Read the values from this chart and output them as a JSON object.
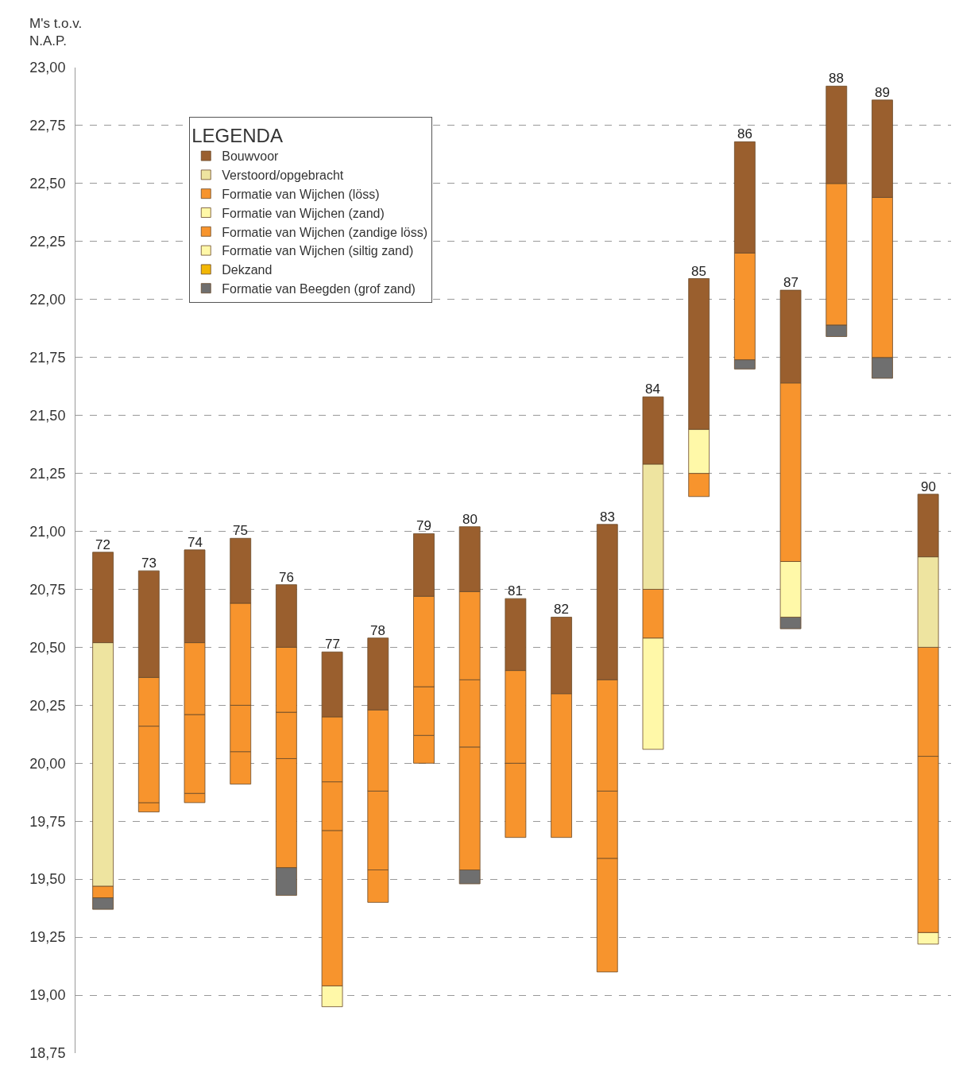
{
  "chart_data": {
    "type": "bar",
    "ylabel": "M's t.o.v.\nN.A.P.",
    "legend_title": "LEGENDA",
    "categories": [
      "72",
      "73",
      "74",
      "75",
      "76",
      "77",
      "78",
      "79",
      "80",
      "81",
      "82",
      "83",
      "84",
      "85",
      "86",
      "87",
      "88",
      "89",
      "90"
    ],
    "series": [
      {
        "name": "Formatie van Beegden (grof zand)",
        "color": "#6f6f6f",
        "base": [
          19.37,
          null,
          null,
          null,
          19.43,
          null,
          null,
          null,
          19.48,
          null,
          null,
          null,
          null,
          null,
          21.7,
          20.58,
          21.84,
          21.66,
          null
        ],
        "values": [
          0.05,
          null,
          null,
          null,
          0.12,
          null,
          null,
          null,
          0.06,
          null,
          null,
          null,
          null,
          null,
          0.04,
          0.05,
          0.05,
          0.09,
          null
        ]
      },
      {
        "color": "#f7942d",
        "base": [
          null,
          null,
          null,
          null,
          null,
          null,
          null,
          null,
          null,
          null,
          null,
          null,
          null,
          21.15,
          null,
          null,
          null,
          null,
          null
        ],
        "values": [
          null,
          null,
          null,
          null,
          null,
          null,
          null,
          null,
          null,
          null,
          null,
          null,
          null,
          0.1,
          null,
          null,
          null,
          null,
          null
        ]
      },
      {
        "name": "Dekzand",
        "color": "#f2b705",
        "values": [
          null,
          null,
          null,
          null,
          null,
          null,
          null,
          null,
          null,
          null,
          null,
          null,
          null,
          null,
          null,
          null,
          null,
          null,
          null
        ]
      },
      {
        "name": "Formatie van Wijchen (siltig zand)",
        "color": "#fff8a8",
        "base": [
          null,
          null,
          null,
          null,
          null,
          18.95,
          null,
          null,
          null,
          null,
          null,
          null,
          20.06,
          21.25,
          null,
          20.63,
          null,
          null,
          19.22
        ],
        "values": [
          null,
          null,
          null,
          null,
          null,
          0.09,
          null,
          null,
          null,
          null,
          null,
          null,
          0.48,
          0.19,
          null,
          0.24,
          null,
          null,
          0.05
        ]
      },
      {
        "name": "Formatie van Wijchen (zandige löss)",
        "color": "#f7942d",
        "base": [
          19.42,
          19.79,
          19.83,
          19.91,
          19.55,
          19.04,
          19.4,
          20.0,
          19.54,
          19.68,
          19.68,
          19.1,
          20.54,
          null,
          21.74,
          20.87,
          21.89,
          21.75,
          19.27
        ],
        "values": [
          0.05,
          0.04,
          0.04,
          0.14,
          0.47,
          0.67,
          0.14,
          0.12,
          0.53,
          0.32,
          0.62,
          0.49,
          0.21,
          null,
          0.46,
          0.77,
          0.61,
          0.69,
          0.76
        ]
      },
      {
        "color": "#f7942d",
        "base": [
          null,
          19.83,
          19.87,
          20.05,
          20.02,
          19.71,
          19.54,
          20.12,
          20.07,
          null,
          null,
          19.59,
          null,
          null,
          null,
          null,
          null,
          null,
          null
        ],
        "values": [
          null,
          0.33,
          0.34,
          0.2,
          0.2,
          0.21,
          0.34,
          0.21,
          0.29,
          null,
          null,
          0.29,
          null,
          null,
          null,
          null,
          null,
          null,
          null
        ]
      },
      {
        "name": "Formatie van Wijchen (zand)",
        "color": "#fff8a8",
        "values": [
          null,
          null,
          null,
          null,
          null,
          null,
          null,
          null,
          null,
          null,
          null,
          null,
          null,
          null,
          null,
          null,
          null,
          null,
          null
        ]
      },
      {
        "name": "Formatie van Wijchen (löss)",
        "color": "#f7942d",
        "base": [
          null,
          20.16,
          20.21,
          20.25,
          20.22,
          19.92,
          19.88,
          20.33,
          20.36,
          20.0,
          null,
          19.88,
          null,
          null,
          null,
          null,
          null,
          null,
          20.03
        ],
        "values": [
          null,
          0.21,
          0.31,
          0.44,
          0.28,
          0.28,
          0.35,
          0.39,
          0.38,
          0.4,
          null,
          0.48,
          null,
          null,
          null,
          null,
          null,
          null,
          0.47
        ]
      },
      {
        "name": "Verstoord/opgebracht",
        "color": "#eee4a0",
        "base": [
          19.47,
          null,
          null,
          null,
          null,
          null,
          null,
          null,
          null,
          null,
          null,
          null,
          20.75,
          null,
          null,
          null,
          null,
          null,
          20.5
        ],
        "values": [
          1.05,
          null,
          null,
          null,
          null,
          null,
          null,
          null,
          null,
          null,
          null,
          null,
          0.54,
          null,
          null,
          null,
          null,
          null,
          0.39
        ]
      },
      {
        "name": "Bouwvoor",
        "color": "#9a5f2e",
        "base": [
          20.52,
          20.37,
          20.52,
          20.69,
          20.5,
          20.2,
          20.23,
          20.72,
          20.74,
          20.4,
          20.3,
          20.36,
          21.29,
          21.44,
          22.2,
          21.64,
          22.5,
          22.44,
          20.89
        ],
        "values": [
          0.39,
          0.46,
          0.4,
          0.28,
          0.27,
          0.28,
          0.31,
          0.27,
          0.28,
          0.31,
          0.33,
          0.67,
          0.29,
          0.65,
          0.48,
          0.4,
          0.42,
          0.42,
          0.27
        ]
      }
    ],
    "ylim": [
      18.75,
      23.0
    ],
    "yticks": [
      {
        "value": 18.75,
        "label": "18,75"
      },
      {
        "value": 19.0,
        "label": "19,00"
      },
      {
        "value": 19.25,
        "label": "19,25"
      },
      {
        "value": 19.5,
        "label": "19,50"
      },
      {
        "value": 19.75,
        "label": "19,75"
      },
      {
        "value": 20.0,
        "label": "20,00"
      },
      {
        "value": 20.25,
        "label": "20,25"
      },
      {
        "value": 20.5,
        "label": "20,50"
      },
      {
        "value": 20.75,
        "label": "20,75"
      },
      {
        "value": 21.0,
        "label": "21,00"
      },
      {
        "value": 21.25,
        "label": "21,25"
      },
      {
        "value": 21.5,
        "label": "21,50"
      },
      {
        "value": 21.75,
        "label": "21,75"
      },
      {
        "value": 22.0,
        "label": "22,00"
      },
      {
        "value": 22.25,
        "label": "22,25"
      },
      {
        "value": 22.5,
        "label": "22,50"
      },
      {
        "value": 22.75,
        "label": "22,75"
      },
      {
        "value": 23.0,
        "label": "23,00"
      }
    ],
    "grid": "y",
    "legend": "top left"
  }
}
